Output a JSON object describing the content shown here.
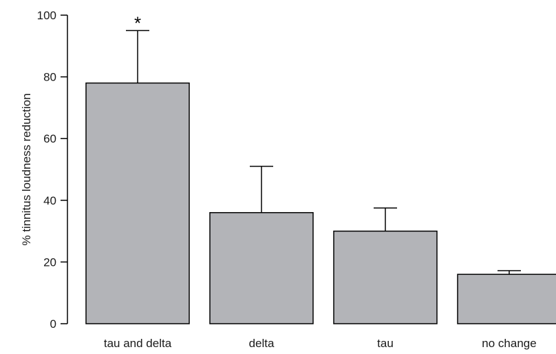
{
  "chart_data": {
    "type": "bar",
    "categories": [
      "tau and delta",
      "delta",
      "tau",
      "no change"
    ],
    "values": [
      78,
      36,
      30,
      16
    ],
    "error_upper": [
      95,
      51,
      37.5,
      17.2
    ],
    "significance": [
      "*",
      "",
      "",
      ""
    ],
    "title": "",
    "xlabel": "",
    "ylabel": "% tinnitus loudness reduction",
    "ylim": [
      0,
      100
    ],
    "yticks": [
      0,
      20,
      40,
      60,
      80,
      100
    ],
    "grid": false,
    "legend": "none",
    "colors": {
      "bar_fill": "#b3b4b8",
      "bar_stroke": "#000000",
      "axis": "#000000"
    }
  }
}
